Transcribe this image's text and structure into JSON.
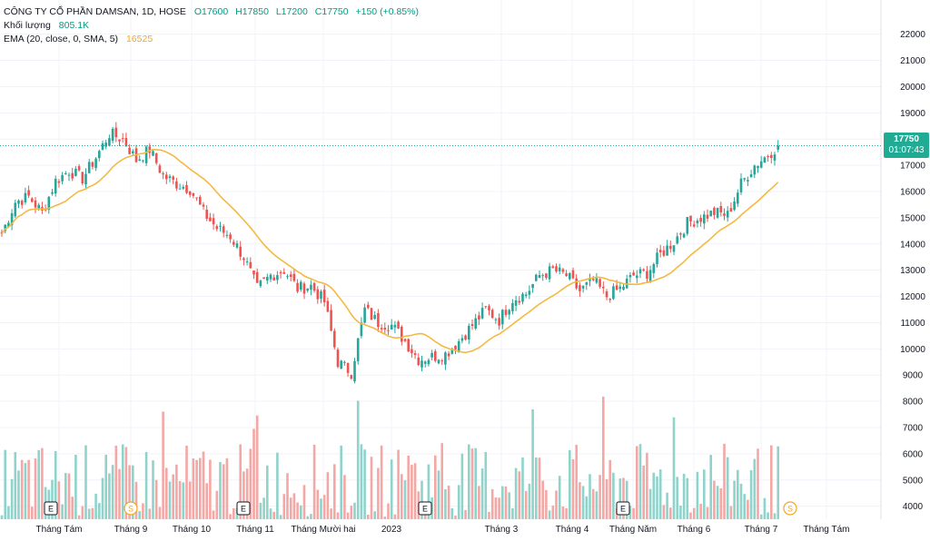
{
  "legend": {
    "symbol": "CÔNG TY CỔ PHẦN DAMSAN, 1D, HOSE",
    "open": "O17600",
    "high": "H17850",
    "low": "L17200",
    "close": "C17750",
    "change": "+150 (+0.85%)",
    "volume_label": "Khối lượng",
    "volume_value": "805.1K",
    "ema_label": "EMA (20, close, 0, SMA, 5)",
    "ema_value": "16525"
  },
  "last_price": {
    "price": "17750",
    "countdown": "01:07:43"
  },
  "colors": {
    "up": "#26a69a",
    "down": "#ef5350",
    "up_vol": "#8fd3cb",
    "down_vol": "#f4a8a6",
    "ema": "#f5b942",
    "grid": "#f0f3fa",
    "axis_text": "#131722",
    "tag": "#22ab94"
  },
  "chart_data": {
    "type": "candlestick",
    "y_ticks": [
      "4000",
      "5000",
      "6000",
      "7000",
      "8000",
      "9000",
      "10000",
      "11000",
      "12000",
      "13000",
      "14000",
      "15000",
      "16000",
      "17000",
      "18000",
      "19000",
      "20000",
      "21000",
      "22000"
    ],
    "ylim": [
      3400,
      23200
    ],
    "x_ticks": [
      "Tháng Tám",
      "Tháng 9",
      "Tháng 10",
      "Tháng 11",
      "Tháng Mười hai",
      "2023",
      "Tháng 3",
      "Tháng 4",
      "Tháng Năm",
      "Tháng 6",
      "Tháng 7",
      "Tháng Tám"
    ],
    "events": [
      {
        "type": "E",
        "label": "E"
      },
      {
        "type": "S",
        "label": "S"
      },
      {
        "type": "E",
        "label": "E"
      },
      {
        "type": "E",
        "label": "E"
      },
      {
        "type": "E",
        "label": "E"
      },
      {
        "type": "S",
        "label": "S"
      }
    ],
    "close_path": [
      [
        0,
        14400
      ],
      [
        4,
        15600
      ],
      [
        8,
        15800
      ],
      [
        12,
        15200
      ],
      [
        16,
        16400
      ],
      [
        20,
        16800
      ],
      [
        24,
        16500
      ],
      [
        28,
        17300
      ],
      [
        32,
        18200
      ],
      [
        36,
        18000
      ],
      [
        40,
        17200
      ],
      [
        44,
        17600
      ],
      [
        48,
        16600
      ],
      [
        52,
        16300
      ],
      [
        56,
        16100
      ],
      [
        60,
        15200
      ],
      [
        64,
        14600
      ],
      [
        68,
        14300
      ],
      [
        72,
        13500
      ],
      [
        76,
        12300
      ],
      [
        80,
        12800
      ],
      [
        84,
        13000
      ],
      [
        88,
        12300
      ],
      [
        92,
        12400
      ],
      [
        96,
        11800
      ],
      [
        100,
        9500
      ],
      [
        104,
        9100
      ],
      [
        108,
        11500
      ],
      [
        112,
        11000
      ],
      [
        116,
        10900
      ],
      [
        120,
        10300
      ],
      [
        124,
        9600
      ],
      [
        128,
        9700
      ],
      [
        132,
        9800
      ],
      [
        136,
        10300
      ],
      [
        140,
        10900
      ],
      [
        144,
        11500
      ],
      [
        148,
        11100
      ],
      [
        152,
        11900
      ],
      [
        156,
        12100
      ],
      [
        160,
        12800
      ],
      [
        164,
        13000
      ],
      [
        168,
        12800
      ],
      [
        172,
        12200
      ],
      [
        176,
        12600
      ],
      [
        180,
        12000
      ],
      [
        184,
        12300
      ],
      [
        188,
        12800
      ],
      [
        192,
        12900
      ],
      [
        196,
        13600
      ],
      [
        200,
        14100
      ],
      [
        204,
        14800
      ],
      [
        208,
        15000
      ],
      [
        212,
        15200
      ],
      [
        216,
        15100
      ],
      [
        220,
        16300
      ],
      [
        224,
        17000
      ],
      [
        228,
        17400
      ],
      [
        231,
        17750
      ]
    ],
    "last_close": 17750,
    "ema_period": 20
  }
}
